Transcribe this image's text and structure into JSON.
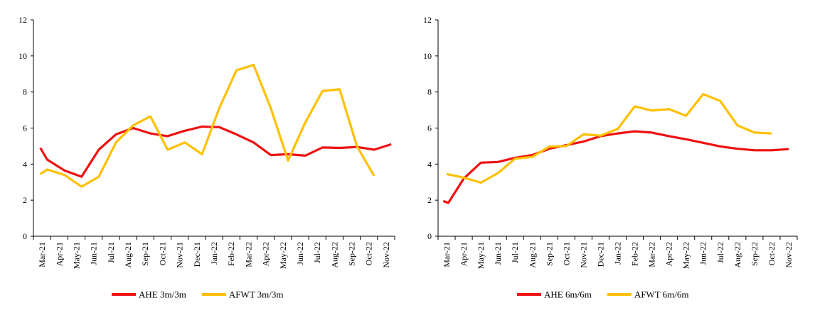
{
  "chart_data": [
    {
      "type": "line",
      "title": "",
      "xlabel": "",
      "ylabel": "",
      "ylim": [
        0,
        12
      ],
      "yticks": [
        0,
        2,
        4,
        6,
        8,
        10,
        12
      ],
      "grid": false,
      "legend": "bottom",
      "categories": [
        "Mar-21",
        "Apr-21",
        "May-21",
        "Jun-21",
        "Jul-21",
        "Aug-21",
        "Sep-21",
        "Oct-21",
        "Nov-21",
        "Dec-21",
        "Jan-22",
        "Feb-22",
        "Mar-22",
        "Apr-22",
        "May-22",
        "Jun-22",
        "Jul-22",
        "Aug-22",
        "Sep-22",
        "Oct-22",
        "Nov-22"
      ],
      "series": [
        {
          "name": "AHE 3m/3m",
          "color": "#ee1111",
          "x": [
            -0.1,
            0.3,
            1.3,
            2.3,
            3.3,
            4.3,
            5.3,
            6.3,
            7.3,
            8.3,
            9.3,
            10.3,
            11.3,
            12.3,
            13.3,
            14.3,
            15.3,
            16.3,
            17.3,
            18.3,
            19.3,
            20.3
          ],
          "values": [
            4.9,
            4.25,
            3.65,
            3.3,
            4.8,
            5.65,
            6.0,
            5.7,
            5.55,
            5.85,
            6.08,
            6.05,
            5.65,
            5.2,
            4.5,
            4.55,
            4.47,
            4.92,
            4.9,
            4.95,
            4.8,
            5.1
          ]
        },
        {
          "name": "AFWT 3m/3m",
          "color": "#ffc000",
          "x": [
            -0.1,
            0.3,
            1.3,
            2.3,
            3.3,
            4.3,
            5.3,
            6.3,
            7.3,
            8.3,
            9.3,
            10.3,
            11.3,
            12.3,
            13.3,
            14.3,
            15.3,
            16.3,
            17.3,
            18.3,
            19.3
          ],
          "values": [
            3.45,
            3.7,
            3.4,
            2.75,
            3.3,
            5.2,
            6.15,
            6.65,
            4.8,
            5.2,
            4.55,
            7.1,
            9.2,
            9.5,
            7.1,
            4.2,
            6.3,
            8.05,
            8.15,
            5.0,
            3.35
          ]
        }
      ]
    },
    {
      "type": "line",
      "title": "",
      "xlabel": "",
      "ylabel": "",
      "ylim": [
        0,
        12
      ],
      "yticks": [
        0,
        2,
        4,
        6,
        8,
        10,
        12
      ],
      "grid": false,
      "legend": "bottom",
      "categories": [
        "Mar-21",
        "Apr-21",
        "May-21",
        "Jun-21",
        "Jul-21",
        "Aug-21",
        "Sep-21",
        "Oct-21",
        "Nov-21",
        "Dec-21",
        "Jan-22",
        "Feb-22",
        "Mar-22",
        "Apr-22",
        "May-22",
        "Jun-22",
        "Jul-22",
        "Aug-22",
        "Sep-22",
        "Oct-22",
        "Nov-22"
      ],
      "series": [
        {
          "name": "AHE 6m/6m",
          "color": "#ee1111",
          "x": [
            -0.2,
            0.1,
            1.0,
            2.0,
            3.0,
            4.0,
            5.0,
            6.0,
            7.0,
            8.0,
            9.0,
            10.0,
            11.0,
            12.0,
            13.0,
            14.0,
            15.0,
            16.0,
            17.0,
            18.0,
            19.0,
            20.0
          ],
          "values": [
            1.95,
            1.85,
            3.2,
            4.08,
            4.12,
            4.35,
            4.5,
            4.85,
            5.05,
            5.25,
            5.55,
            5.7,
            5.82,
            5.75,
            5.55,
            5.38,
            5.18,
            4.98,
            4.85,
            4.77,
            4.77,
            4.83
          ]
        },
        {
          "name": "AFWT 6m/6m",
          "color": "#ffc000",
          "x": [
            0.0,
            1.0,
            2.0,
            3.0,
            4.0,
            5.0,
            6.0,
            7.0,
            8.0,
            9.0,
            10.0,
            11.0,
            12.0,
            13.0,
            14.0,
            15.0,
            16.0,
            17.0,
            18.0,
            19.0
          ],
          "values": [
            3.45,
            3.25,
            2.97,
            3.5,
            4.3,
            4.4,
            4.97,
            5.0,
            5.65,
            5.58,
            5.95,
            7.2,
            6.97,
            7.05,
            6.68,
            7.88,
            7.5,
            6.15,
            5.75,
            5.7
          ]
        }
      ]
    }
  ]
}
